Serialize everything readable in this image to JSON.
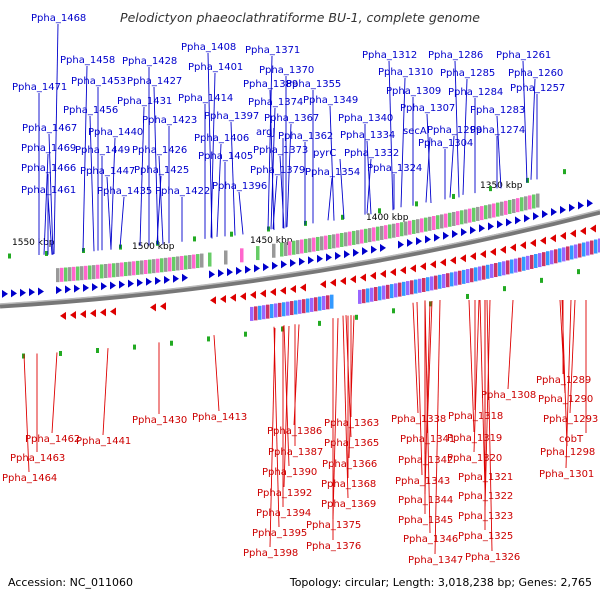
{
  "title": "Pelodictyon phaeoclathratiforme BU-1, complete genome",
  "accession": "Accession: NC_011060",
  "summary": "Topology: circular; Length: 3,018,238 bp; Genes: 2,765",
  "ticks": [
    "1550 kbp",
    "1500 kbp",
    "1450 kbp",
    "1400 kbp",
    "1350 kbp"
  ],
  "forward_labels": [
    "Ppha_1468",
    "Ppha_1471",
    "Ppha_1467",
    "Ppha_1469",
    "Ppha_1466",
    "Ppha_1461",
    "Ppha_1458",
    "Ppha_1453",
    "Ppha_1456",
    "Ppha_1440",
    "Ppha_1449",
    "Ppha_1447",
    "Ppha_1435",
    "Ppha_1428",
    "Ppha_1427",
    "Ppha_1431",
    "Ppha_1423",
    "Ppha_1426",
    "Ppha_1425",
    "Ppha_1422",
    "Ppha_1408",
    "Ppha_1401",
    "Ppha_1414",
    "Ppha_1397",
    "Ppha_1406",
    "Ppha_1405",
    "Ppha_1396",
    "Ppha_1371",
    "Ppha_1370",
    "Ppha_1389",
    "Ppha_1374",
    "argJ",
    "Ppha_1373",
    "Ppha_1379",
    "Ppha_1355",
    "Ppha_1349",
    "Ppha_1367",
    "Ppha_1362",
    "pyrC",
    "Ppha_1354",
    "Ppha_1340",
    "Ppha_1334",
    "Ppha_1332",
    "Ppha_1324",
    "Ppha_1312",
    "Ppha_1310",
    "Ppha_1309",
    "Ppha_1307",
    "secA",
    "Ppha_1304",
    "Ppha_1286",
    "Ppha_1285",
    "Ppha_1284",
    "Ppha_1283",
    "Ppha_1299",
    "Ppha_1274",
    "Ppha_1261",
    "Ppha_1260",
    "Ppha_1257"
  ],
  "reverse_labels": [
    "Ppha_1462",
    "Ppha_1463",
    "Ppha_1464",
    "Ppha_1441",
    "Ppha_1430",
    "Ppha_1413",
    "Ppha_1386",
    "Ppha_1387",
    "Ppha_1390",
    "Ppha_1392",
    "Ppha_1394",
    "Ppha_1395",
    "Ppha_1398",
    "Ppha_1363",
    "Ppha_1365",
    "Ppha_1366",
    "Ppha_1368",
    "Ppha_1369",
    "Ppha_1375",
    "Ppha_1376",
    "Ppha_1338",
    "Ppha_1341",
    "Ppha_1342",
    "Ppha_1343",
    "Ppha_1344",
    "Ppha_1345",
    "Ppha_1346",
    "Ppha_1347",
    "Ppha_1318",
    "Ppha_1319",
    "Ppha_1320",
    "Ppha_1321",
    "Ppha_1322",
    "Ppha_1323",
    "Ppha_1325",
    "Ppha_1326",
    "Ppha_1308",
    "Ppha_1289",
    "Ppha_1290",
    "Ppha_1293",
    "cobT",
    "Ppha_1298",
    "Ppha_1301"
  ],
  "colors": {
    "forward": "#0000cc",
    "reverse": "#dd0000",
    "backbone": "#666666",
    "gc_marker": "#22aa22"
  }
}
